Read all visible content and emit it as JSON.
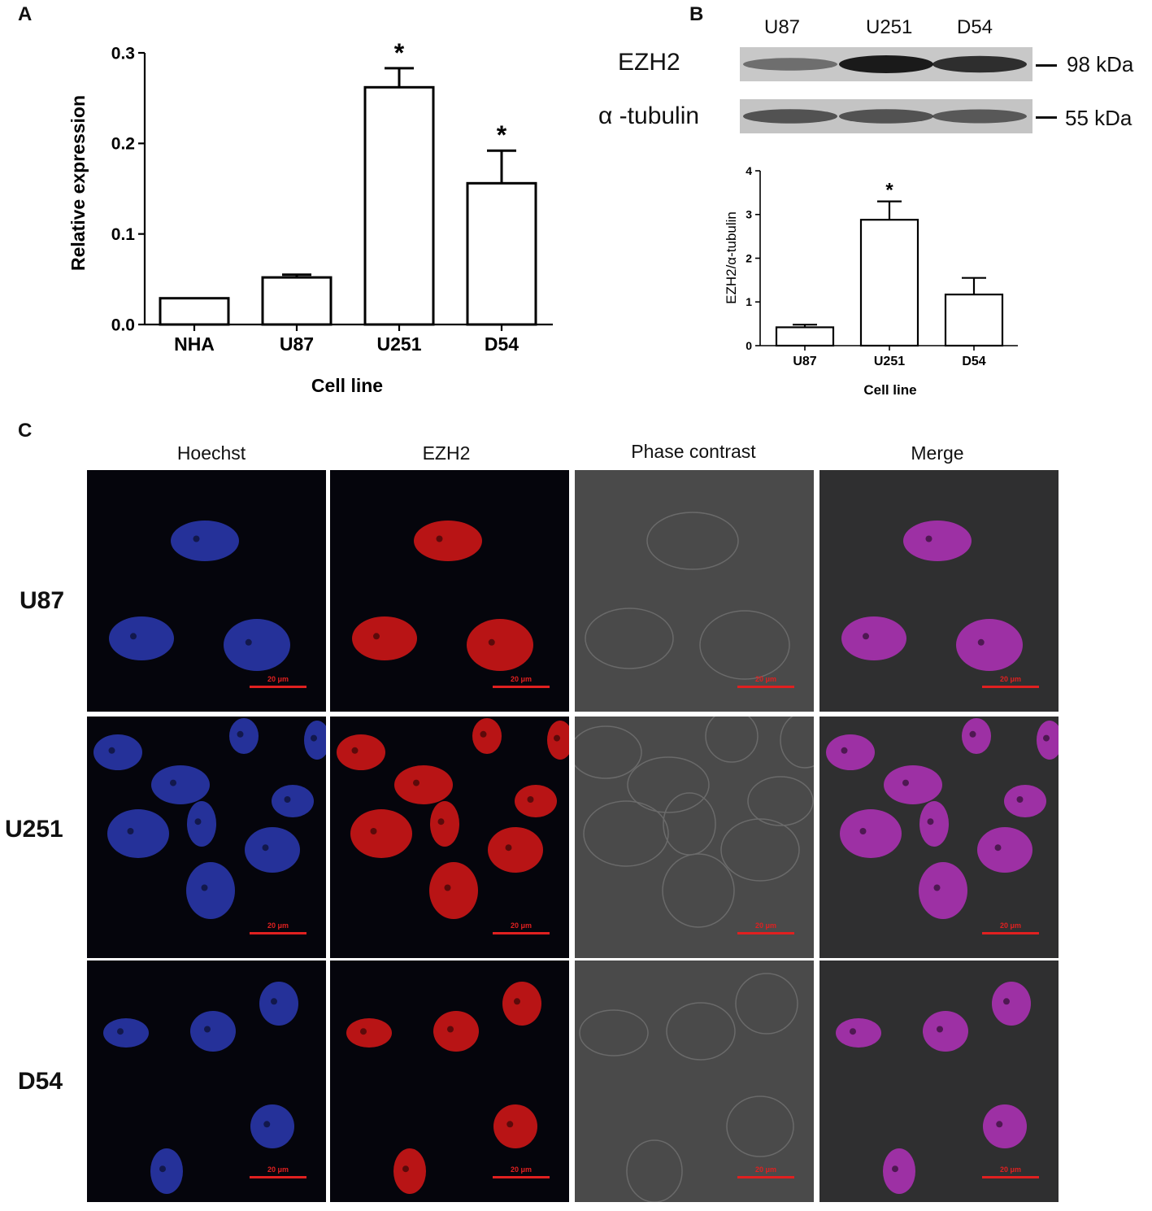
{
  "panel_labels": {
    "a": "A",
    "b": "B",
    "c": "C"
  },
  "chart_data": [
    {
      "panel": "A",
      "type": "bar",
      "title": "",
      "xlabel": "Cell line",
      "ylabel": "Relative expression",
      "categories": [
        "NHA",
        "U87",
        "U251",
        "D54"
      ],
      "values": [
        0.029,
        0.052,
        0.262,
        0.156
      ],
      "errors": [
        0,
        0.003,
        0.021,
        0.036
      ],
      "significance": [
        "",
        "",
        "*",
        "*"
      ],
      "ylim": [
        0,
        0.3
      ],
      "yticks": [
        "0.0",
        "0.1",
        "0.2",
        "0.3"
      ],
      "grid": false
    },
    {
      "panel": "B",
      "type": "bar",
      "title": "",
      "xlabel": "Cell line",
      "ylabel": "EZH2/α-tubulin",
      "categories": [
        "U87",
        "U251",
        "D54"
      ],
      "values": [
        0.42,
        2.88,
        1.17
      ],
      "errors": [
        0.06,
        0.42,
        0.38
      ],
      "significance": [
        "",
        "*",
        ""
      ],
      "ylim": [
        0,
        4
      ],
      "yticks": [
        "0",
        "1",
        "2",
        "3",
        "4"
      ],
      "grid": false
    }
  ],
  "western_blot": {
    "lanes": [
      "U87",
      "U251",
      "D54"
    ],
    "bands": [
      {
        "protein": "EZH2",
        "size": "98 kDa",
        "intensity": [
          0.35,
          1.0,
          0.85
        ]
      },
      {
        "protein": "α -tubulin",
        "size": "55 kDa",
        "intensity": [
          0.55,
          0.55,
          0.5
        ]
      }
    ]
  },
  "microscopy": {
    "columns": [
      "Hoechst",
      "EZH2",
      "Phase contrast",
      "Merge"
    ],
    "rows": [
      "U87",
      "U251",
      "D54"
    ],
    "scale_bar": "20 μm",
    "colors": {
      "hoechst": "#3040c8",
      "ezh2": "#d81818",
      "merge": "#b030b8",
      "phase": "#4a4a4a",
      "scale": "#e02020"
    }
  }
}
